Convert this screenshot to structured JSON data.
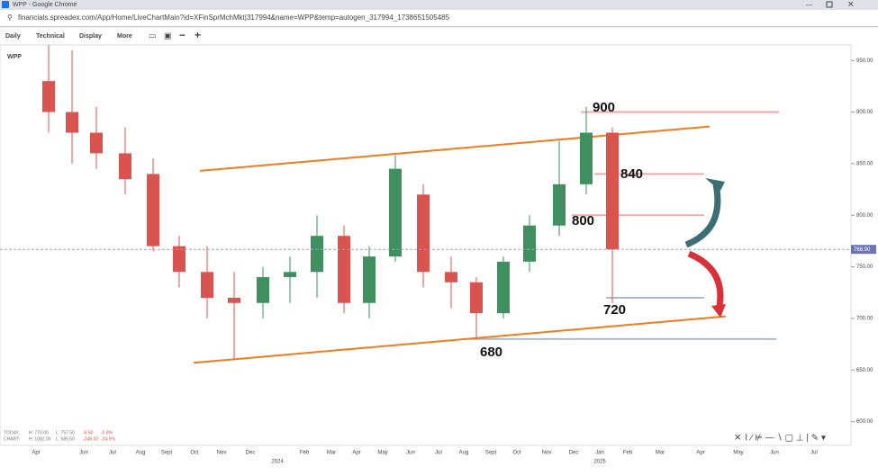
{
  "window": {
    "title": "WPP - Google Chrome",
    "url": "financials.spreadex.com/App/Home/LiveChartMain?id=XFinSprMchMkt|317994&name=WPP&temp=autogen_317994_1738651505485"
  },
  "toolbar": [
    "Daily",
    "Technical",
    "Display",
    "More"
  ],
  "chart_data": {
    "type": "candlestick",
    "title": "WPP",
    "categories": [
      "Apr",
      null,
      "Jun",
      "Jul",
      "Aug",
      "Sept",
      "Oct",
      "Nov",
      "Dec",
      null,
      "Feb",
      "Mar",
      "Apr",
      "May",
      "Jun",
      "Jul",
      "Aug",
      "Sept",
      "Oct",
      "Nov",
      "Dec",
      "Jan",
      "Feb",
      "Mar",
      "Apr",
      "May",
      "Jun",
      "Jul"
    ],
    "year_labels": [
      "2024",
      "2025"
    ],
    "open": [
      930,
      900,
      880,
      860,
      840,
      770,
      745,
      720,
      715,
      740,
      745,
      780,
      715,
      760,
      820,
      745,
      735,
      705,
      755,
      790,
      830,
      880,
      null,
      null,
      null,
      null,
      null,
      null
    ],
    "high": [
      965,
      960,
      905,
      885,
      855,
      780,
      770,
      745,
      750,
      760,
      800,
      790,
      770,
      858,
      830,
      760,
      740,
      760,
      800,
      872,
      905,
      885,
      null,
      null,
      null,
      null,
      null,
      null
    ],
    "low": [
      880,
      850,
      845,
      820,
      765,
      730,
      700,
      660,
      700,
      715,
      720,
      705,
      700,
      755,
      730,
      710,
      680,
      700,
      745,
      780,
      820,
      715,
      null,
      null,
      null,
      null,
      null,
      null
    ],
    "close": [
      900,
      880,
      860,
      835,
      770,
      745,
      720,
      715,
      740,
      745,
      780,
      715,
      760,
      845,
      745,
      735,
      705,
      755,
      790,
      830,
      880,
      767,
      null,
      null,
      null,
      null,
      null,
      null
    ],
    "up_color": "#3f8f5f",
    "down_color": "#d9534f",
    "ylim": [
      577,
      965
    ],
    "yticks": [
      {
        "value": 600,
        "label": "600.00"
      },
      {
        "value": 650,
        "label": "650.00"
      },
      {
        "value": 700,
        "label": "700.00"
      },
      {
        "value": 750,
        "label": "750.00"
      },
      {
        "value": 800,
        "label": "800.00"
      },
      {
        "value": 850,
        "label": "850.00"
      },
      {
        "value": 900,
        "label": "900.00"
      },
      {
        "value": 950,
        "label": "950.00"
      }
    ],
    "last_price": {
      "value": 766.9,
      "label": "766.90"
    },
    "levels": [
      900,
      840,
      800,
      720,
      680
    ],
    "level_colors": [
      "#f2a7ad",
      "#f2a7ad",
      "#f2a7ad",
      "#a9bccd",
      "#a9bccd"
    ],
    "trendlines": [
      [
        843,
        886
      ],
      [
        657,
        702
      ]
    ],
    "trend_color": "#f07c1e"
  },
  "footer": {
    "today": [
      "TODAY:",
      "H: 770.00",
      "L: 757.50",
      "-6.50",
      "-0.8%"
    ],
    "chart": [
      "CHART:",
      "H: 1082.00",
      "L: 686.50",
      "-249.10",
      "-24.5%"
    ]
  }
}
